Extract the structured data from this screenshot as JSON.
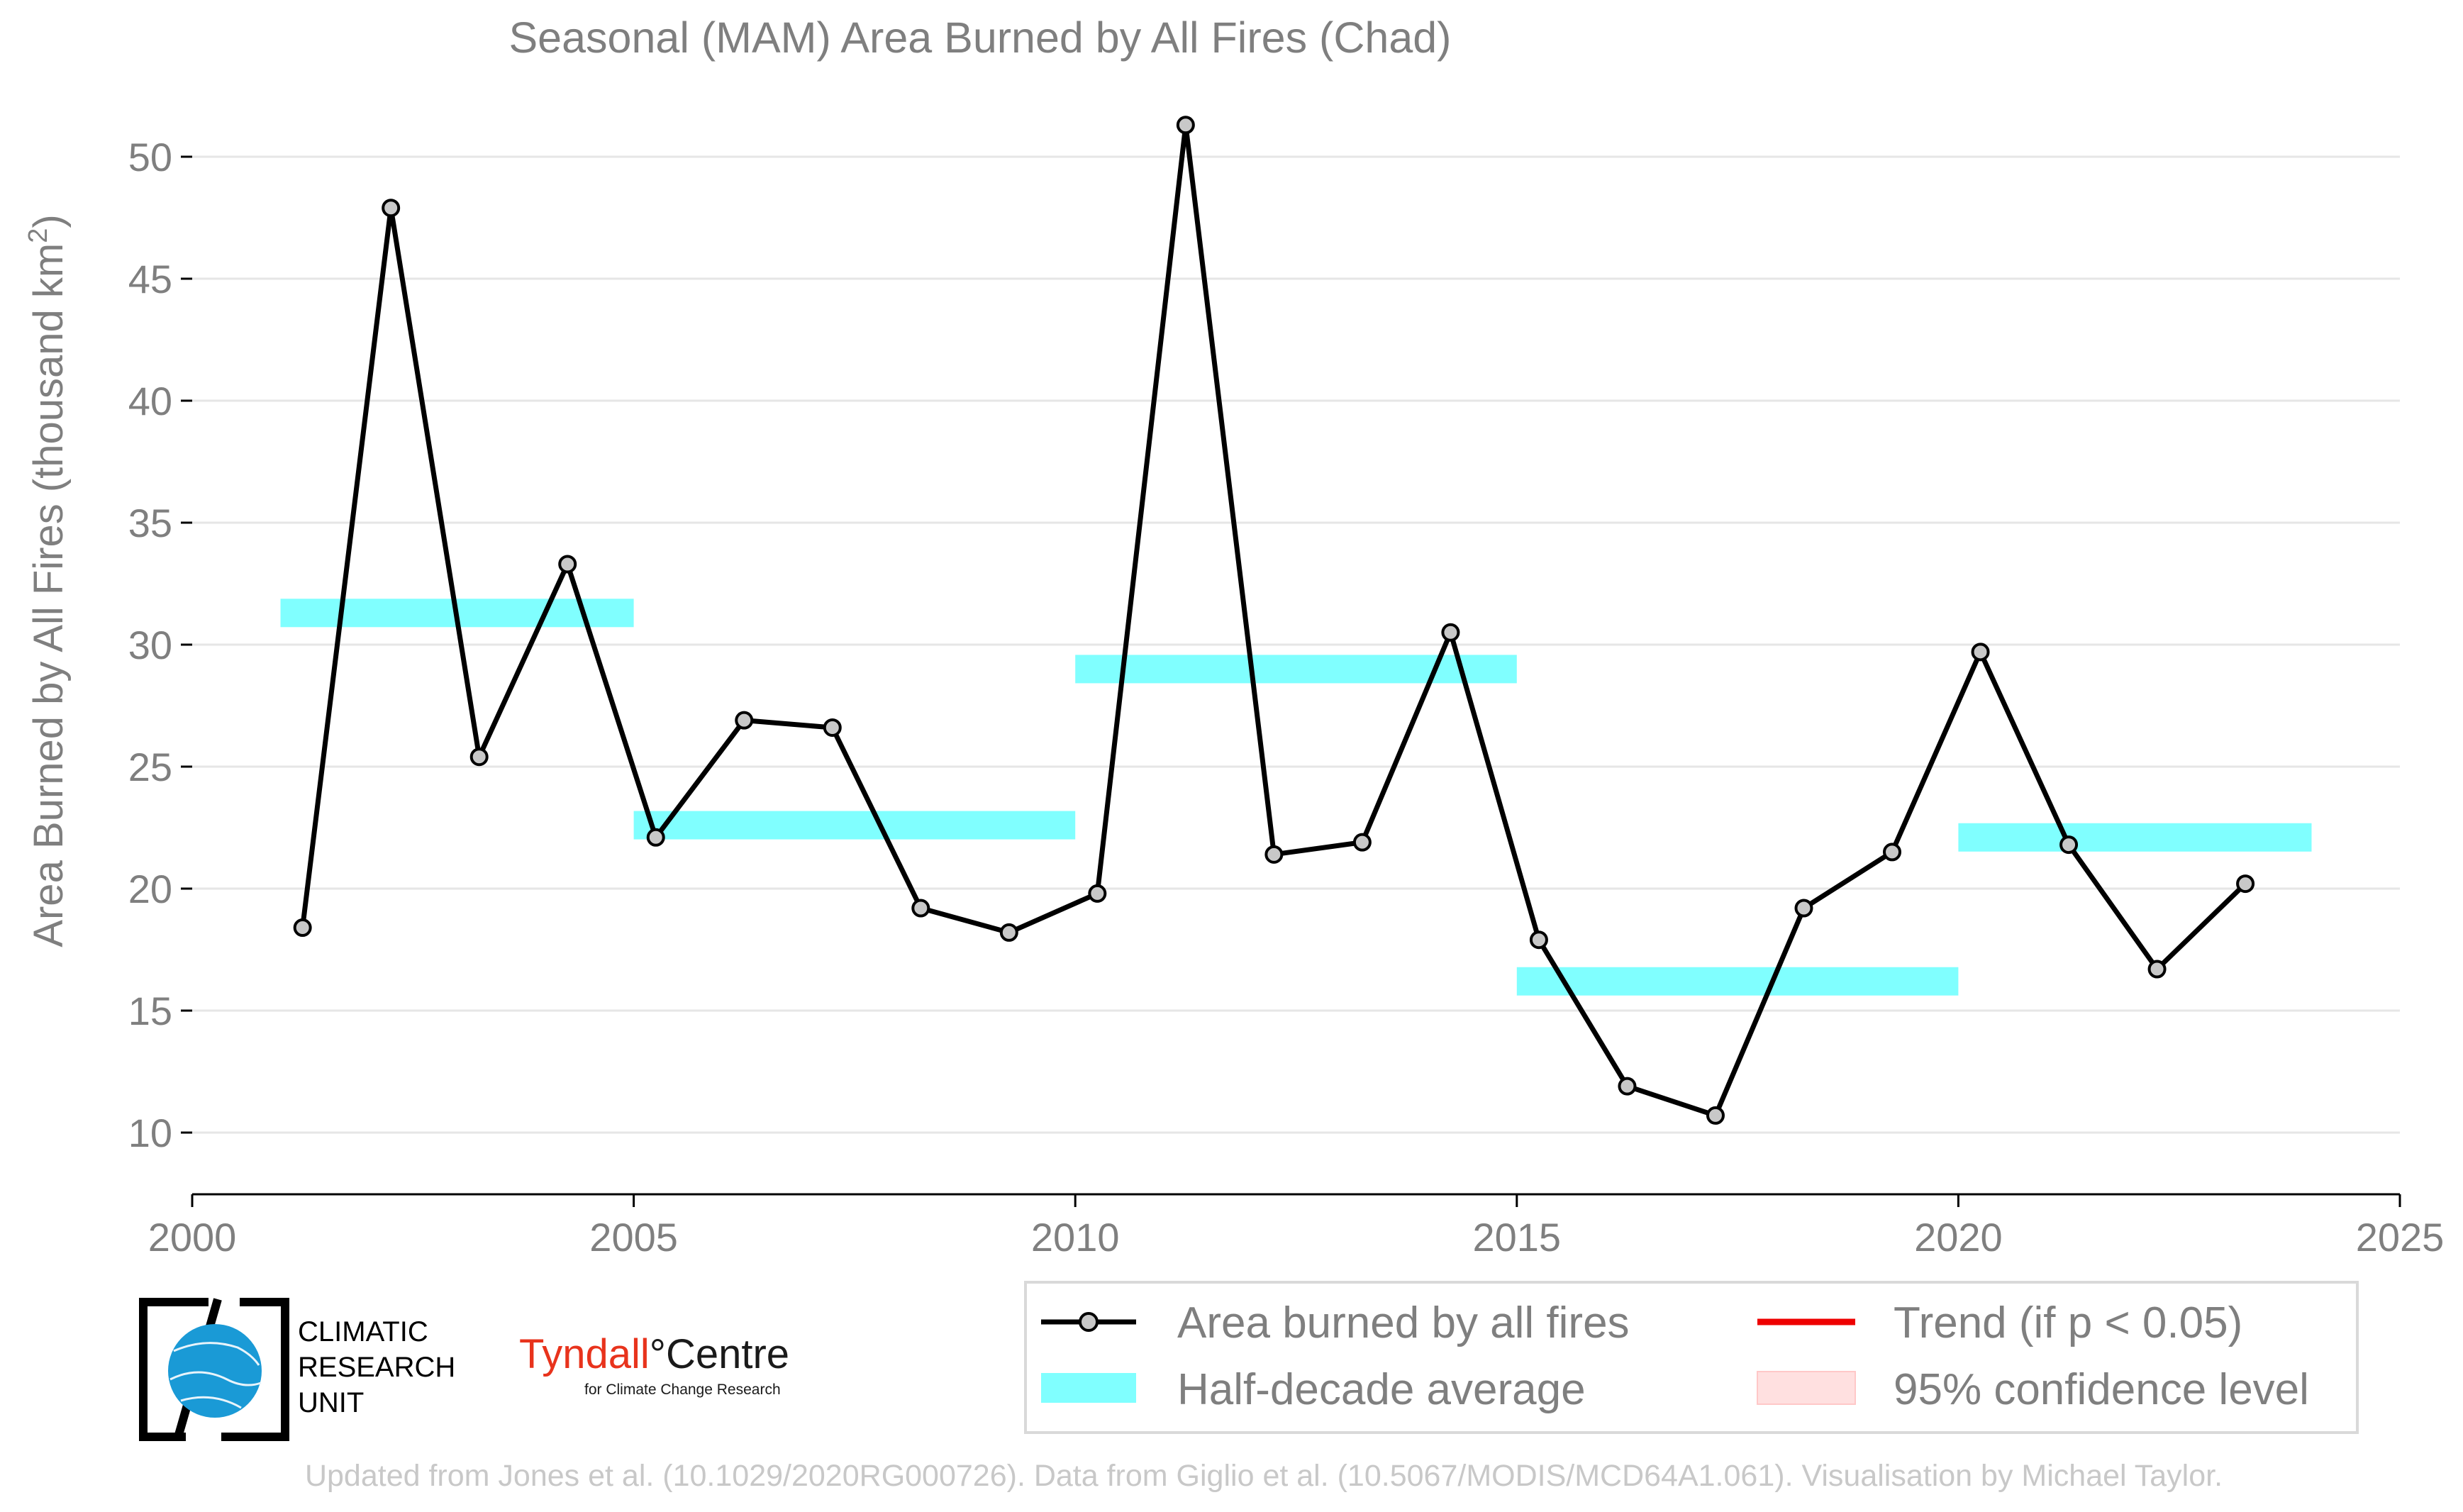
{
  "chart_data": {
    "type": "line",
    "title": "Seasonal (MAM) Area Burned by All Fires (Chad)",
    "ylabel": "Area Burned by All Fires (thousand km",
    "ylabel_sup": "2",
    "ylabel_end": ")",
    "xlim": [
      2000,
      2025
    ],
    "ylim": [
      7.5,
      51.5
    ],
    "x_ticks": [
      2000,
      2005,
      2010,
      2015,
      2020,
      2025
    ],
    "y_ticks": [
      10,
      15,
      20,
      25,
      30,
      35,
      40,
      45,
      50
    ],
    "grid": "horizontal",
    "series": [
      {
        "name": "Area burned by all fires",
        "x": [
          2001.25,
          2002.25,
          2003.25,
          2004.25,
          2005.25,
          2006.25,
          2007.25,
          2008.25,
          2009.25,
          2010.25,
          2011.25,
          2012.25,
          2013.25,
          2014.25,
          2015.25,
          2016.25,
          2017.25,
          2018.25,
          2019.25,
          2020.25,
          2021.25,
          2022.25,
          2023.25
        ],
        "values": [
          18.4,
          47.9,
          25.4,
          33.3,
          22.1,
          26.9,
          26.6,
          19.2,
          18.2,
          19.8,
          51.3,
          21.4,
          21.9,
          30.5,
          17.9,
          11.9,
          10.7,
          19.2,
          21.5,
          29.7,
          21.8,
          16.7,
          20.2
        ],
        "color": "#000000",
        "marker_fill": "#c8c8c8"
      }
    ],
    "half_decade_average": {
      "name": "Half-decade average",
      "color": "#80ffff",
      "segments": [
        {
          "x0": 2001,
          "x1": 2005,
          "value": 31.3
        },
        {
          "x0": 2005,
          "x1": 2010,
          "value": 22.6
        },
        {
          "x0": 2010,
          "x1": 2015,
          "value": 29.0
        },
        {
          "x0": 2015,
          "x1": 2020,
          "value": 16.2
        },
        {
          "x0": 2020,
          "x1": 2024,
          "value": 22.1
        }
      ]
    },
    "legend": {
      "placement": "bottom-right",
      "entries": [
        {
          "label": "Area burned by all fires",
          "color": "#000000"
        },
        {
          "label": "Trend (if p < 0.05)",
          "color": "#ee0000"
        },
        {
          "label": "Half-decade average",
          "color": "#80ffff"
        },
        {
          "label": "95% confidence level",
          "color": "#ffe0e0"
        }
      ]
    }
  },
  "logos": {
    "cru_lines": [
      "CLIMATIC",
      "RESEARCH",
      "UNIT"
    ],
    "tyndall_part1": "Tyndall",
    "tyndall_part2": "°Centre",
    "tyndall_sub": "for Climate Change Research"
  },
  "footer": "Updated from Jones et al. (10.1029/2020RG000726). Data from Giglio et al. (10.5067/MODIS/MCD64A1.061). Visualisation by Michael Taylor."
}
